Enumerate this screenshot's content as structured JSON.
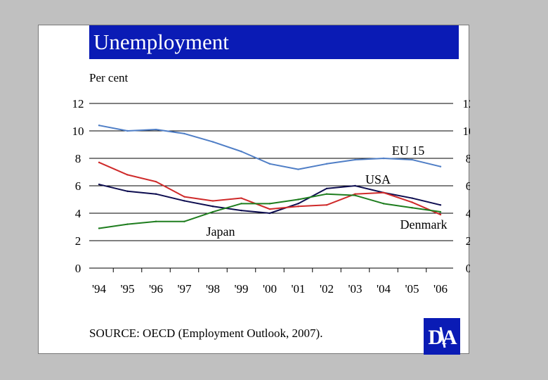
{
  "header": {
    "title": "Unemployment",
    "source": "SOURCE: OECD (Employment Outlook, 2007).",
    "logo_text": "DA"
  },
  "colors": {
    "title_bg": "#0a1bb5",
    "eu15": "#4f7ec6",
    "usa": "#0d0d50",
    "denmark": "#cf2a2a",
    "japan": "#1e7d1e"
  },
  "chart_data": {
    "type": "line",
    "title": "Unemployment",
    "ylabel": "Per cent",
    "xlabel": "",
    "ylim": [
      0,
      12
    ],
    "yticks": [
      "0",
      "2",
      "4",
      "6",
      "8",
      "10",
      "12"
    ],
    "categories": [
      "'94",
      "'95",
      "'96",
      "'97",
      "'98",
      "'99",
      "'00",
      "'01",
      "'02",
      "'03",
      "'04",
      "'05",
      "'06"
    ],
    "grid": true,
    "series": [
      {
        "name": "EU 15",
        "color": "#4f7ec6",
        "values": [
          10.4,
          10.0,
          10.1,
          9.8,
          9.2,
          8.5,
          7.6,
          7.2,
          7.6,
          7.9,
          8.0,
          7.9,
          7.4
        ]
      },
      {
        "name": "USA",
        "color": "#0d0d50",
        "values": [
          6.1,
          5.6,
          5.4,
          4.9,
          4.5,
          4.2,
          4.0,
          4.7,
          5.8,
          6.0,
          5.5,
          5.1,
          4.6
        ]
      },
      {
        "name": "Denmark",
        "color": "#cf2a2a",
        "values": [
          7.7,
          6.8,
          6.3,
          5.2,
          4.9,
          5.1,
          4.3,
          4.5,
          4.6,
          5.4,
          5.5,
          4.8,
          3.9
        ]
      },
      {
        "name": "Japan",
        "color": "#1e7d1e",
        "values": [
          2.9,
          3.2,
          3.4,
          3.4,
          4.1,
          4.7,
          4.7,
          5.0,
          5.4,
          5.3,
          4.7,
          4.4,
          4.1
        ]
      }
    ]
  }
}
